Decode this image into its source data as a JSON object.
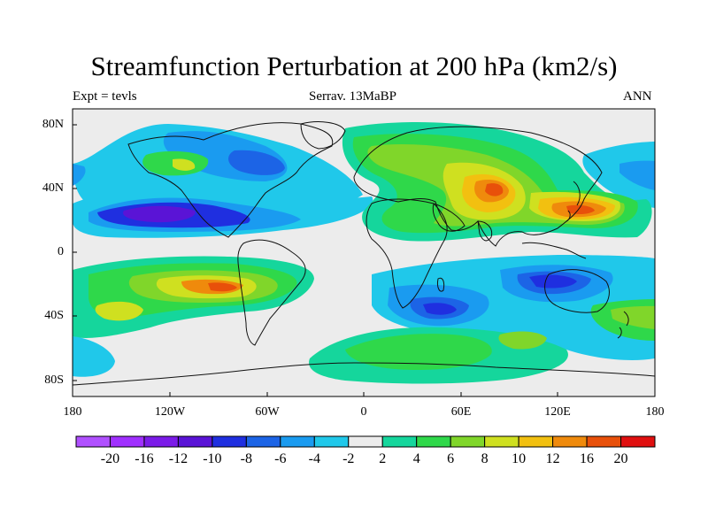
{
  "title": "Streamfunction Perturbation at 200 hPa (km2/s)",
  "subtitle": {
    "left": "Expt = tevls",
    "center": "Serrav.  13MaBP",
    "right": "ANN"
  },
  "axes": {
    "y_labels": [
      "80N",
      "40N",
      "0",
      "40S",
      "80S"
    ],
    "x_labels": [
      "180",
      "120W",
      "60W",
      "0",
      "60E",
      "120E",
      "180"
    ]
  },
  "colorbar": {
    "labels": [
      "-20",
      "-16",
      "-12",
      "-10",
      "-8",
      "-6",
      "-4",
      "-2",
      "2",
      "4",
      "6",
      "8",
      "10",
      "12",
      "16",
      "20"
    ],
    "colors": [
      "#a030ff",
      "#7b1be8",
      "#5a14d6",
      "#1f2fe0",
      "#1c64e6",
      "#1a9bf0",
      "#20c8ea",
      "#ececec",
      "#15d69c",
      "#2fd84a",
      "#80d62a",
      "#cfe020",
      "#f2c010",
      "#ef8a0c",
      "#e8500a",
      "#e01010"
    ]
  },
  "map_fields": [
    {
      "name": "north-pacific-atlantic-low",
      "level": "-6",
      "color": "#1a9bf0"
    },
    {
      "name": "subtropical-pacific-low",
      "level": "-12",
      "color": "#5a14d6"
    },
    {
      "name": "asia-high",
      "level": "12",
      "color": "#ef8a0c"
    },
    {
      "name": "west-pacific-high",
      "level": "16",
      "color": "#e8500a"
    },
    {
      "name": "south-america-high",
      "level": "12",
      "color": "#ef8a0c"
    },
    {
      "name": "southern-indian-low",
      "level": "-10",
      "color": "#1f2fe0"
    },
    {
      "name": "antarctic-high",
      "level": "4",
      "color": "#2fd84a"
    }
  ]
}
